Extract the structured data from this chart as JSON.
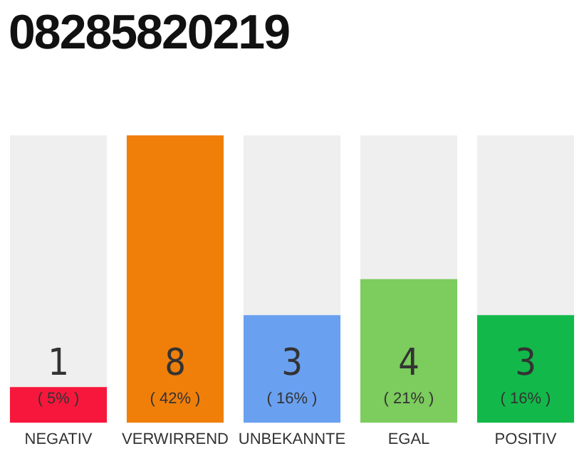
{
  "chart_data": {
    "type": "bar",
    "title": "08285820219",
    "categories": [
      "NEGATIV",
      "VERWIRREND",
      "UNBEKANNTE",
      "EGAL",
      "POSITIV"
    ],
    "values": [
      1,
      8,
      3,
      4,
      3
    ],
    "colors": [
      "#f8173c",
      "#f07f0a",
      "#6aa0f0",
      "#7ccc5e",
      "#12b94a"
    ],
    "data_labels": true,
    "annotations": [
      "( 5% )",
      "( 42% )",
      "( 16% )",
      "( 21% )",
      "( 16% )"
    ],
    "grid": false,
    "legend": false
  }
}
